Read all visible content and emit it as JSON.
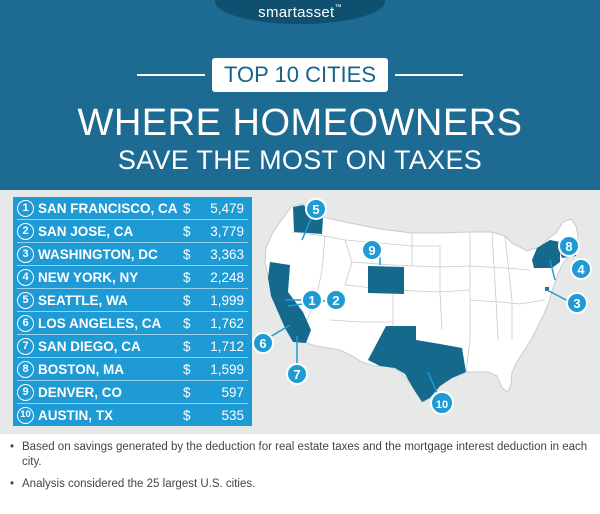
{
  "header": {
    "logo_text": "smartasset",
    "logo_mark": "™",
    "badge": "TOP 10 CITIES",
    "title_line1": "WHERE HOMEOWNERS",
    "title_line2": "SAVE THE MOST ON TAXES"
  },
  "colors": {
    "header_bg": "#1d6a93",
    "list_bg": "#1e9ad5",
    "map_bg": "#e7e8e8",
    "state_fill": "#ffffff",
    "highlight_fill": "#14698c",
    "pin_fill": "#1e9ad5"
  },
  "rankings": [
    {
      "rank": "1",
      "city": "SAN FRANCISCO, CA",
      "currency": "$",
      "amount": "5,479"
    },
    {
      "rank": "2",
      "city": "SAN JOSE, CA",
      "currency": "$",
      "amount": "3,779"
    },
    {
      "rank": "3",
      "city": "WASHINGTON, DC",
      "currency": "$",
      "amount": "3,363"
    },
    {
      "rank": "4",
      "city": "NEW YORK, NY",
      "currency": "$",
      "amount": "2,248"
    },
    {
      "rank": "5",
      "city": "SEATTLE, WA",
      "currency": "$",
      "amount": "1,999"
    },
    {
      "rank": "6",
      "city": "LOS ANGELES, CA",
      "currency": "$",
      "amount": "1,762"
    },
    {
      "rank": "7",
      "city": "SAN DIEGO, CA",
      "currency": "$",
      "amount": "1,712"
    },
    {
      "rank": "8",
      "city": "BOSTON, MA",
      "currency": "$",
      "amount": "1,599"
    },
    {
      "rank": "9",
      "city": "DENVER, CO",
      "currency": "$",
      "amount": "597"
    },
    {
      "rank": "10",
      "city": "AUSTIN, TX",
      "currency": "$",
      "amount": "535"
    }
  ],
  "map": {
    "highlighted_states": [
      "WA",
      "CA",
      "CO",
      "TX",
      "NY",
      "MA",
      "DC"
    ],
    "pins": [
      "1",
      "2",
      "3",
      "4",
      "5",
      "6",
      "7",
      "8",
      "9",
      "10"
    ]
  },
  "notes": [
    "Based on savings generated by the deduction for real estate taxes and the mortgage interest deduction in each city.",
    "Analysis considered the 25 largest U.S. cities."
  ],
  "note_bullet": "•"
}
